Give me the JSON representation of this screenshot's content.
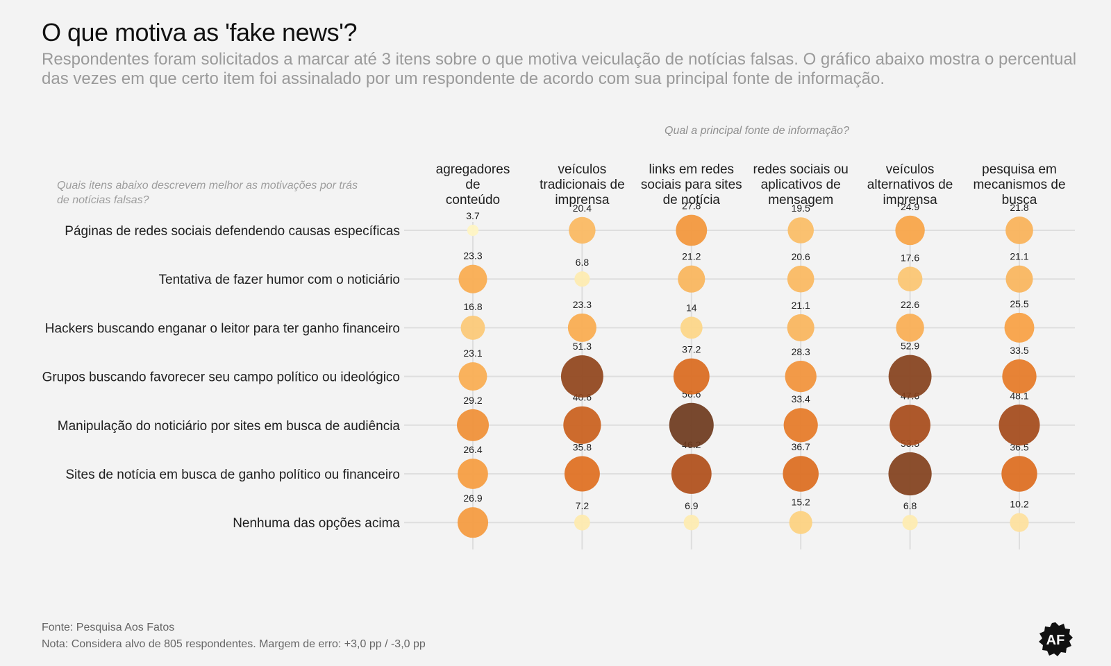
{
  "header": {
    "title": "O que motiva as 'fake news'?",
    "subtitle": "Respondentes foram solicitados a marcar até 3 itens sobre o que motiva veiculação de notícias falsas. O gráfico abaixo mostra o percentual das vezes em que certo item foi assinalado por um respondente de acordo com sua principal fonte de informação."
  },
  "footer": {
    "source": "Fonte: Pesquisa Aos Fatos",
    "note": "Nota: Considera alvo de 805 respondentes. Margem de erro: +3,0 pp / -3,0 pp"
  },
  "logo": {
    "text": "AF",
    "icon": "aos-fatos-logo-icon",
    "color": "#111111"
  },
  "chart_data": {
    "type": "scatter",
    "subtype": "bubble-matrix",
    "column_axis_label": "Qual a principal fonte de informação?",
    "row_axis_label": "Quais itens abaixo descrevem melhor as motivações por trás de notícias falsas?",
    "columns": [
      [
        "agregadores",
        "de",
        "conteúdo"
      ],
      [
        "veículos",
        "tradicionais de",
        "imprensa"
      ],
      [
        "links em redes",
        "sociais para sites",
        "de notícia"
      ],
      [
        "redes sociais ou",
        "aplicativos de",
        "mensagem"
      ],
      [
        "veículos",
        "alternativos de",
        "imprensa"
      ],
      [
        "pesquisa em",
        "mecanismos de",
        "busca"
      ]
    ],
    "rows": [
      "Páginas de redes sociais defendendo causas específicas",
      "Tentativa de fazer humor com o noticiário",
      "Hackers buscando enganar o leitor para ter ganho financeiro",
      "Grupos buscando favorecer seu campo político ou ideológico",
      "Manipulação do noticiário por sites em busca de audiência",
      "Sites de notícia em busca de ganho político ou financeiro",
      "Nenhuma das opções acima"
    ],
    "values": [
      [
        3.7,
        20.4,
        27.8,
        19.5,
        24.9,
        21.8
      ],
      [
        23.3,
        6.8,
        21.2,
        20.6,
        17.6,
        21.1
      ],
      [
        16.8,
        23.3,
        14,
        21.1,
        22.6,
        25.5
      ],
      [
        23.1,
        51.3,
        37.2,
        28.3,
        52.9,
        33.5
      ],
      [
        29.2,
        40.6,
        56.6,
        33.4,
        47.6,
        48.1
      ],
      [
        26.4,
        35.8,
        46.2,
        36.7,
        53.5,
        36.5
      ],
      [
        26.9,
        7.2,
        6.9,
        15.2,
        6.8,
        10.2
      ]
    ],
    "value_labels": [
      [
        "3.7",
        "20.4",
        "27.8",
        "19.5",
        "24.9",
        "21.8"
      ],
      [
        "23.3",
        "6.8",
        "21.2",
        "20.6",
        "17.6",
        "21.1"
      ],
      [
        "16.8",
        "23.3",
        "14",
        "21.1",
        "22.6",
        "25.5"
      ],
      [
        "23.1",
        "51.3",
        "37.2",
        "28.3",
        "52.9",
        "33.5"
      ],
      [
        "29.2",
        "40.6",
        "56.6",
        "33.4",
        "47.6",
        "48.1"
      ],
      [
        "26.4",
        "35.8",
        "46.2",
        "36.7",
        "53.5",
        "36.5"
      ],
      [
        "26.9",
        "7.2",
        "6.9",
        "15.2",
        "6.8",
        "10.2"
      ]
    ],
    "value_range": [
      3.7,
      56.6
    ],
    "color_scale": [
      "#fff5c2",
      "#fdd585",
      "#f9a445",
      "#e2701f",
      "#b14e19",
      "#6e3a1d"
    ],
    "grid": true
  }
}
